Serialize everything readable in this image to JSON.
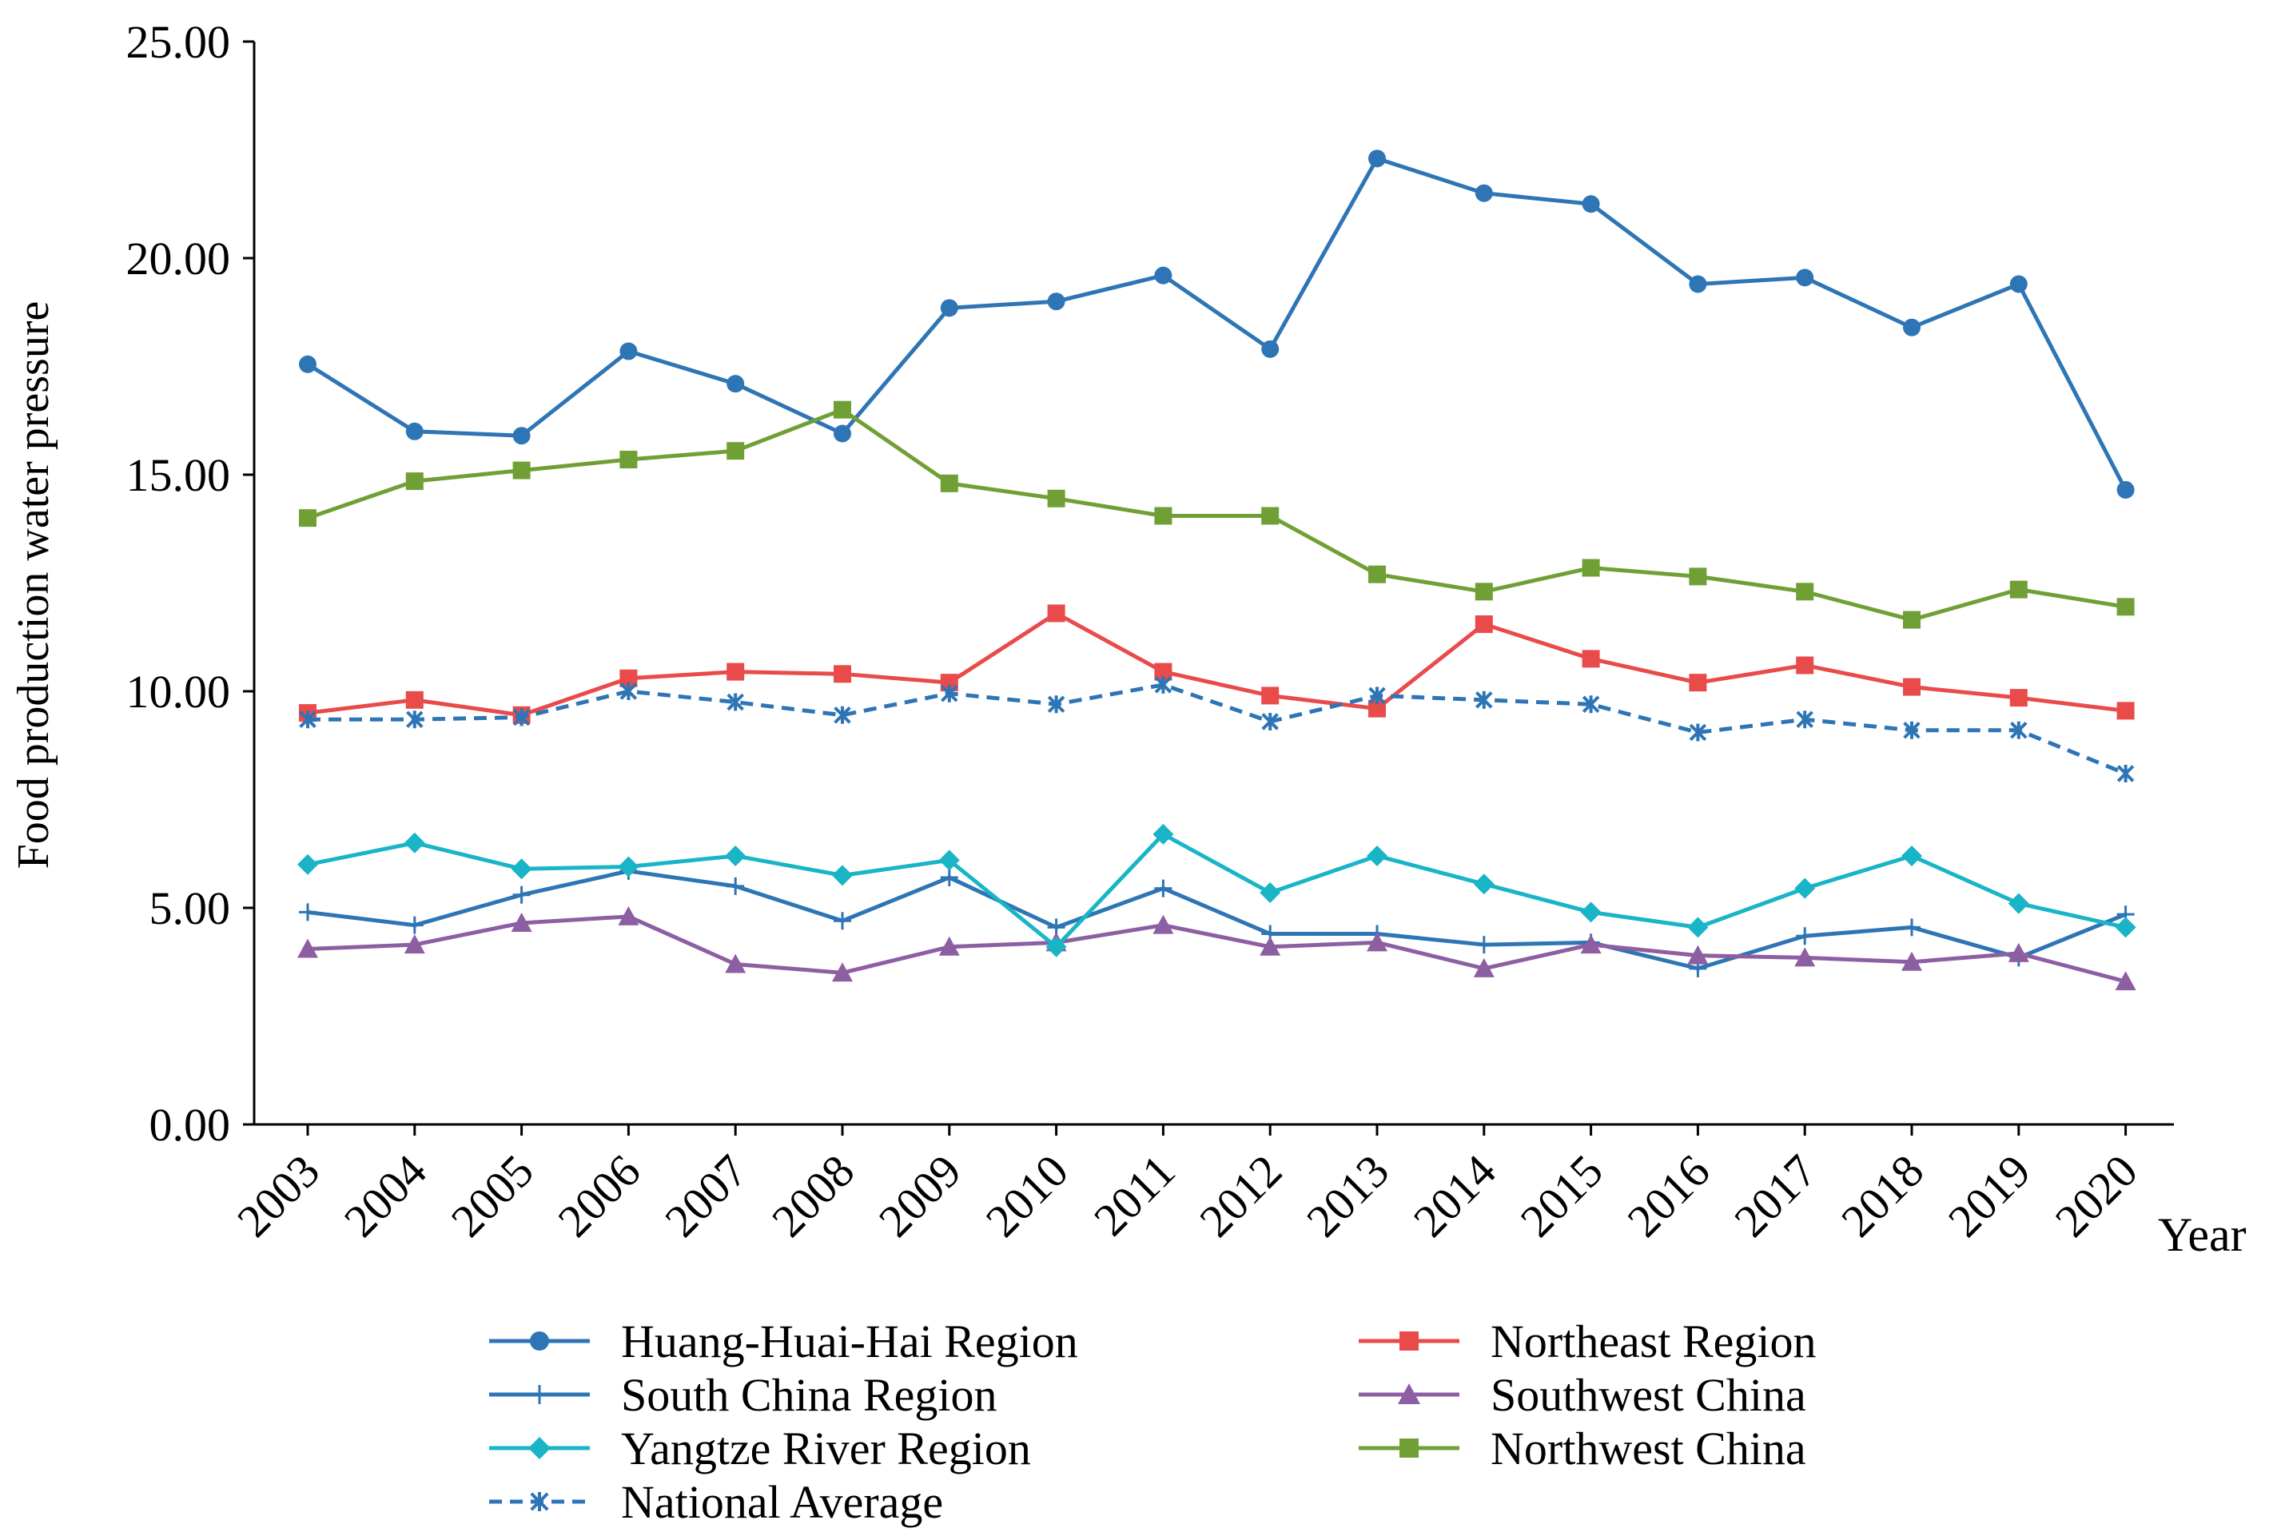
{
  "chart_data": {
    "type": "line",
    "title": "",
    "xlabel": "Year",
    "ylabel": "Food production water pressure",
    "ylim": [
      0,
      25
    ],
    "yticks": [
      "0.00",
      "5.00",
      "10.00",
      "15.00",
      "20.00",
      "25.00"
    ],
    "ytick_values": [
      0,
      5,
      10,
      15,
      20,
      25
    ],
    "categories": [
      "2003",
      "2004",
      "2005",
      "2006",
      "2007",
      "2008",
      "2009",
      "2010",
      "2011",
      "2012",
      "2013",
      "2014",
      "2015",
      "2016",
      "2017",
      "2018",
      "2019",
      "2020"
    ],
    "legend_position": "bottom",
    "grid": false,
    "series": [
      {
        "name": "Huang-Huai-Hai Region",
        "color": "#2e75b6",
        "marker": "circle",
        "dash": false,
        "values": [
          17.55,
          16.0,
          15.9,
          17.85,
          17.1,
          15.95,
          18.85,
          19.0,
          19.6,
          17.9,
          22.3,
          21.5,
          21.25,
          19.4,
          19.55,
          18.4,
          19.4,
          14.65
        ]
      },
      {
        "name": "Northeast Region",
        "color": "#e94b4b",
        "marker": "square",
        "dash": false,
        "values": [
          9.5,
          9.8,
          9.45,
          10.3,
          10.45,
          10.4,
          10.2,
          11.8,
          10.45,
          9.9,
          9.6,
          11.55,
          10.75,
          10.2,
          10.6,
          10.1,
          9.85,
          9.55
        ]
      },
      {
        "name": "South China Region",
        "color": "#2e75b6",
        "marker": "plus",
        "dash": false,
        "values": [
          4.9,
          4.6,
          5.3,
          5.85,
          5.5,
          4.7,
          5.7,
          4.55,
          5.45,
          4.4,
          4.4,
          4.15,
          4.2,
          3.6,
          4.35,
          4.55,
          3.85,
          4.85
        ]
      },
      {
        "name": "Southwest China",
        "color": "#8e5ea2",
        "marker": "triangle",
        "dash": false,
        "values": [
          4.05,
          4.15,
          4.65,
          4.8,
          3.7,
          3.5,
          4.1,
          4.2,
          4.6,
          4.1,
          4.2,
          3.6,
          4.15,
          3.9,
          3.85,
          3.75,
          3.95,
          3.3
        ]
      },
      {
        "name": "Yangtze River Region",
        "color": "#19b5c7",
        "marker": "diamond",
        "dash": false,
        "values": [
          6.0,
          6.5,
          5.9,
          5.95,
          6.2,
          5.75,
          6.1,
          4.1,
          6.7,
          5.35,
          6.2,
          5.55,
          4.9,
          4.55,
          5.45,
          6.2,
          5.1,
          4.55
        ]
      },
      {
        "name": "Northwest China",
        "color": "#70a035",
        "marker": "square",
        "dash": false,
        "values": [
          14.0,
          14.85,
          15.1,
          15.35,
          15.55,
          16.5,
          14.8,
          14.45,
          14.05,
          14.05,
          12.7,
          12.3,
          12.85,
          12.65,
          12.3,
          11.65,
          12.35,
          11.95
        ]
      },
      {
        "name": "National Average",
        "color": "#2e75b6",
        "marker": "asterisk",
        "dash": true,
        "values": [
          9.35,
          9.35,
          9.4,
          10.0,
          9.75,
          9.45,
          9.95,
          9.7,
          10.15,
          9.3,
          9.9,
          9.8,
          9.7,
          9.05,
          9.35,
          9.1,
          9.1,
          8.1
        ]
      }
    ]
  }
}
